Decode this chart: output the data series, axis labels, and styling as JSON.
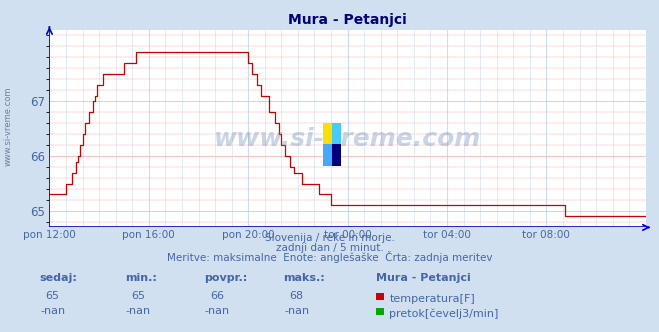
{
  "title": "Mura - Petanjci",
  "bg_color": "#d0e0f0",
  "plot_bg_color": "#ffffff",
  "grid_color_h": "#ffaaaa",
  "grid_color_v": "#ccddee",
  "line_color": "#cc0000",
  "line_color2": "#0000cc",
  "title_color": "#000080",
  "text_color": "#4466aa",
  "yticks": [
    65,
    66,
    67
  ],
  "ymin": 64.7,
  "ymax": 68.3,
  "xtick_labels": [
    "pon 12:00",
    "pon 16:00",
    "pon 20:00",
    "tor 00:00",
    "tor 04:00",
    "tor 08:00"
  ],
  "xtick_positions": [
    0,
    48,
    96,
    144,
    192,
    240
  ],
  "watermark": "www.si-vreme.com",
  "subtitle1": "Slovenija / reke in morje.",
  "subtitle2": "zadnji dan / 5 minut.",
  "subtitle3": "Meritve: maksimalne  Enote: anglešaške  Črta: zadnja meritev",
  "table_headers": [
    "sedaj:",
    "min.:",
    "povpr.:",
    "maks.:"
  ],
  "table_row1": [
    "65",
    "65",
    "66",
    "68"
  ],
  "table_row2": [
    "-nan",
    "-nan",
    "-nan",
    "-nan"
  ],
  "legend_label1": "temperatura[F]",
  "legend_color1": "#cc0000",
  "legend_label2": "pretok[čevelj3/min]",
  "legend_color2": "#00aa00",
  "legend_title": "Mura - Petanjci",
  "side_text": "www.si-vreme.com",
  "temperature_data": [
    65.3,
    65.3,
    65.3,
    65.3,
    65.3,
    65.3,
    65.3,
    65.3,
    65.5,
    65.5,
    65.5,
    65.7,
    65.7,
    65.9,
    66.0,
    66.2,
    66.4,
    66.6,
    66.6,
    66.8,
    66.8,
    67.0,
    67.1,
    67.3,
    67.3,
    67.3,
    67.5,
    67.5,
    67.5,
    67.5,
    67.5,
    67.5,
    67.5,
    67.5,
    67.5,
    67.5,
    67.7,
    67.7,
    67.7,
    67.7,
    67.7,
    67.7,
    67.9,
    67.9,
    67.9,
    67.9,
    67.9,
    67.9,
    67.9,
    67.9,
    67.9,
    67.9,
    67.9,
    67.9,
    67.9,
    67.9,
    67.9,
    67.9,
    67.9,
    67.9,
    67.9,
    67.9,
    67.9,
    67.9,
    67.9,
    67.9,
    67.9,
    67.9,
    67.9,
    67.9,
    67.9,
    67.9,
    67.9,
    67.9,
    67.9,
    67.9,
    67.9,
    67.9,
    67.9,
    67.9,
    67.9,
    67.9,
    67.9,
    67.9,
    67.9,
    67.9,
    67.9,
    67.9,
    67.9,
    67.9,
    67.9,
    67.9,
    67.9,
    67.9,
    67.9,
    67.9,
    67.7,
    67.7,
    67.5,
    67.5,
    67.3,
    67.3,
    67.1,
    67.1,
    67.1,
    67.1,
    66.8,
    66.8,
    66.8,
    66.6,
    66.6,
    66.4,
    66.2,
    66.2,
    66.0,
    66.0,
    65.8,
    65.8,
    65.7,
    65.7,
    65.7,
    65.7,
    65.5,
    65.5,
    65.5,
    65.5,
    65.5,
    65.5,
    65.5,
    65.5,
    65.3,
    65.3,
    65.3,
    65.3,
    65.3,
    65.3,
    65.1,
    65.1,
    65.1,
    65.1,
    65.1,
    65.1,
    65.1,
    65.1,
    65.1,
    65.1,
    65.1,
    65.1,
    65.1,
    65.1,
    65.1,
    65.1,
    65.1,
    65.1,
    65.1,
    65.1,
    65.1,
    65.1,
    65.1,
    65.1,
    65.1,
    65.1,
    65.1,
    65.1,
    65.1,
    65.1,
    65.1,
    65.1,
    65.1,
    65.1,
    65.1,
    65.1,
    65.1,
    65.1,
    65.1,
    65.1,
    65.1,
    65.1,
    65.1,
    65.1,
    65.1,
    65.1,
    65.1,
    65.1,
    65.1,
    65.1,
    65.1,
    65.1,
    65.1,
    65.1,
    65.1,
    65.1,
    65.1,
    65.1,
    65.1,
    65.1,
    65.1,
    65.1,
    65.1,
    65.1,
    65.1,
    65.1,
    65.1,
    65.1,
    65.1,
    65.1,
    65.1,
    65.1,
    65.1,
    65.1,
    65.1,
    65.1,
    65.1,
    65.1,
    65.1,
    65.1,
    65.1,
    65.1,
    65.1,
    65.1,
    65.1,
    65.1,
    65.1,
    65.1,
    65.1,
    65.1,
    65.1,
    65.1,
    65.1,
    65.1,
    65.1,
    65.1,
    65.1,
    65.1,
    65.1,
    65.1,
    65.1,
    65.1,
    65.1,
    65.1,
    65.1,
    65.1,
    65.1,
    65.1,
    65.1,
    65.1,
    65.1,
    65.1,
    65.1,
    64.9,
    64.9,
    64.9,
    64.9,
    64.9,
    64.9,
    64.9,
    64.9,
    64.9,
    64.9,
    64.9,
    64.9,
    64.9,
    64.9,
    64.9,
    64.9,
    64.9,
    64.9,
    64.9,
    64.9,
    64.9,
    64.9,
    64.9,
    64.9,
    64.9,
    64.9,
    64.9,
    64.9,
    64.9,
    64.9,
    64.9,
    64.9,
    64.9,
    64.9,
    64.9,
    64.9,
    64.9,
    64.9,
    64.9,
    64.9,
    64.9,
    64.9,
    64.9,
    64.9,
    64.9
  ]
}
